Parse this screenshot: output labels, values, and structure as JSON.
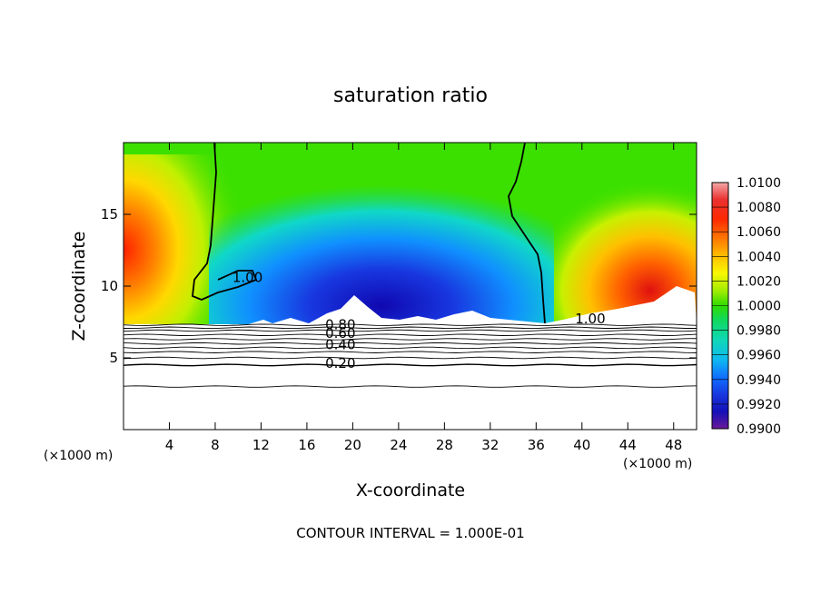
{
  "chart_data": {
    "type": "heatmap",
    "title": "saturation ratio",
    "xlabel": "X-coordinate",
    "ylabel": "Z-coordinate",
    "xlim": [
      0,
      50
    ],
    "ylim": [
      0,
      20
    ],
    "x_ticks": [
      "4",
      "8",
      "12",
      "16",
      "20",
      "24",
      "28",
      "32",
      "36",
      "40",
      "44",
      "48"
    ],
    "y_ticks": [
      "5",
      "10",
      "15"
    ],
    "x_unit_left": "(×1000 m)",
    "x_unit_right": "(×1000 m)",
    "footer": "CONTOUR INTERVAL = 1.000E-01",
    "colorbar": {
      "labels": [
        "1.0100",
        "1.0080",
        "1.0060",
        "1.0040",
        "1.0020",
        "1.0000",
        "0.9980",
        "0.9960",
        "0.9940",
        "0.9920",
        "0.9900"
      ],
      "range": [
        0.99,
        1.01
      ],
      "colors": [
        "#f4a7a7",
        "#ea3030",
        "#ff2a00",
        "#ff6a00",
        "#ffa000",
        "#ffd000",
        "#f8f800",
        "#c8f000",
        "#8ce800",
        "#48e000",
        "#10d820",
        "#10d868",
        "#10d8b0",
        "#10c8e8",
        "#1090ff",
        "#1060f0",
        "#1838e0",
        "#1418c8",
        "#1808a8",
        "#500898",
        "#6a1898"
      ]
    },
    "contour_labels": [
      {
        "text": "1.00",
        "x": 9.5,
        "y": 10.3
      },
      {
        "text": "1.00",
        "x": 39.4,
        "y": 7.4
      },
      {
        "text": "0.80",
        "x": 17.6,
        "y": 7.0
      },
      {
        "text": "0.60",
        "x": 17.6,
        "y": 6.4
      },
      {
        "text": "0.40",
        "x": 17.6,
        "y": 5.6
      },
      {
        "text": "0.20",
        "x": 17.6,
        "y": 4.3
      }
    ],
    "contour_lines_y": [
      7.3,
      7.1,
      6.9,
      6.6,
      6.3,
      6.0,
      5.7,
      5.4,
      5.0,
      4.5,
      3.0
    ]
  }
}
